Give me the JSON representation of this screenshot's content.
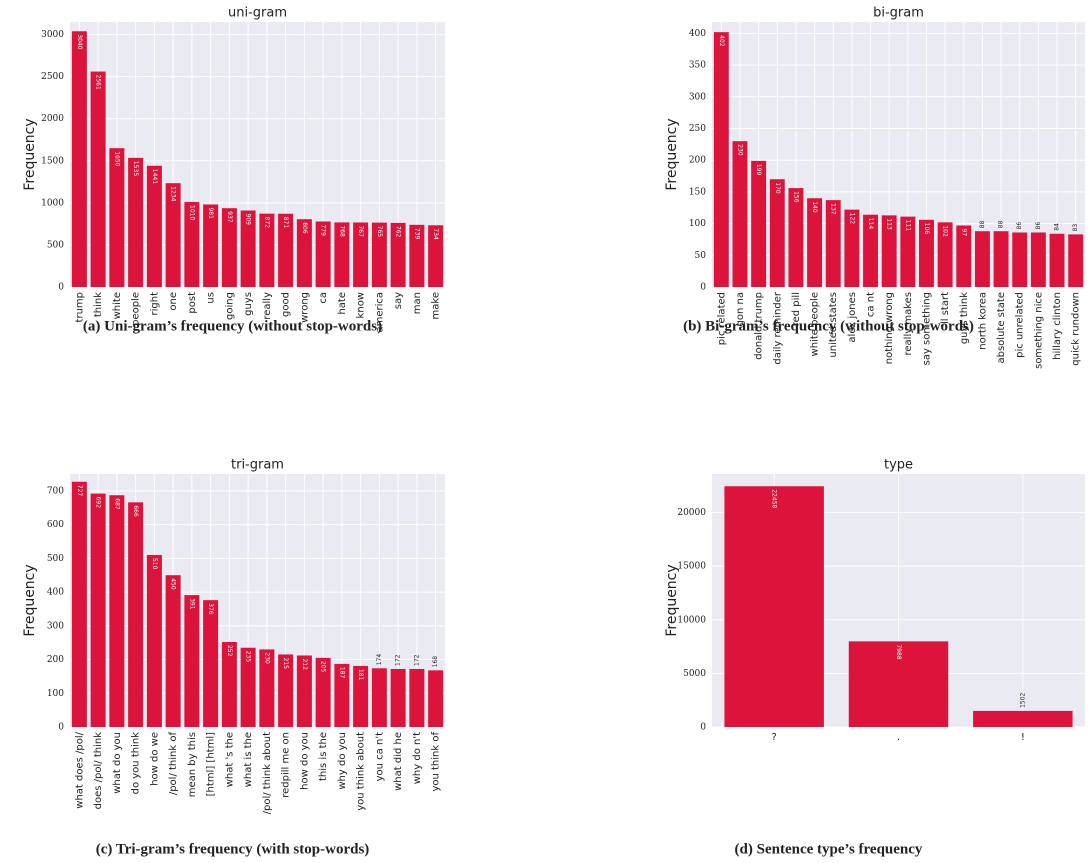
{
  "chart_data": [
    {
      "type": "bar",
      "title": "uni-gram",
      "ylabel": "Frequency",
      "caption": "(a) Uni-gram’s frequency (without stop-words)",
      "categories": [
        "trump",
        "think",
        "white",
        "people",
        "right",
        "one",
        "post",
        "us",
        "going",
        "guys",
        "really",
        "good",
        "wrong",
        "ca",
        "hate",
        "know",
        "america",
        "say",
        "man",
        "make"
      ],
      "values": [
        3040,
        2561,
        1650,
        1535,
        1441,
        1234,
        1010,
        981,
        937,
        909,
        872,
        871,
        806,
        779,
        768,
        767,
        765,
        762,
        739,
        734
      ],
      "color": "#dc143c",
      "ylim": [
        0,
        3150
      ],
      "yticks": [
        0,
        500,
        1000,
        1500,
        2000,
        2500,
        3000
      ],
      "grid": true
    },
    {
      "type": "bar",
      "title": "bi-gram",
      "ylabel": "Frequency",
      "caption": "(b) Bi-gram’s frequency (without stop-words)",
      "categories": [
        "pic related",
        "gon na",
        "donald trump",
        "daily reminder",
        "red pill",
        "white people",
        "united states",
        "alex jones",
        "ca nt",
        "nothing wrong",
        "really makes",
        "say something",
        "'ll start",
        "guys think",
        "north korea",
        "absolute state",
        "pic unrelated",
        "something nice",
        "hillary clinton",
        "quick rundown"
      ],
      "values": [
        402,
        230,
        199,
        170,
        156,
        140,
        137,
        122,
        114,
        113,
        111,
        106,
        102,
        97,
        88,
        88,
        86,
        86,
        84,
        83
      ],
      "color": "#dc143c",
      "ylim": [
        0,
        418
      ],
      "yticks": [
        0,
        50,
        100,
        150,
        200,
        250,
        300,
        350,
        400
      ],
      "grid": true
    },
    {
      "type": "bar",
      "title": "tri-gram",
      "ylabel": "Frequency",
      "caption": "(c) Tri-gram’s frequency (with stop-words)",
      "categories": [
        "what does /pol/",
        "does /pol/ think",
        "what do you",
        "do you think",
        "how do we",
        "/pol/ think of",
        "mean by this",
        "[html] [html]",
        "what 's the",
        "what is the",
        "/pol/ think about",
        "redpill me on",
        "how do you",
        "this is the",
        "why do you",
        "you think about",
        "you ca n't",
        "what did he",
        "why do n't",
        "you think of"
      ],
      "values": [
        727,
        692,
        687,
        666,
        510,
        450,
        391,
        376,
        252,
        235,
        230,
        215,
        212,
        205,
        187,
        181,
        174,
        172,
        172,
        168
      ],
      "color": "#dc143c",
      "ylim": [
        0,
        750
      ],
      "yticks": [
        0,
        100,
        200,
        300,
        400,
        500,
        600,
        700
      ],
      "grid": true
    },
    {
      "type": "bar",
      "title": "type",
      "ylabel": "Frequency",
      "caption": "(d) Sentence type’s frequency",
      "categories": [
        "?",
        ".",
        "!"
      ],
      "values": [
        22458,
        7988,
        1502
      ],
      "color": "#dc143c",
      "ylim": [
        0,
        23600
      ],
      "yticks": [
        0,
        5000,
        10000,
        15000,
        20000
      ],
      "grid": true
    }
  ]
}
